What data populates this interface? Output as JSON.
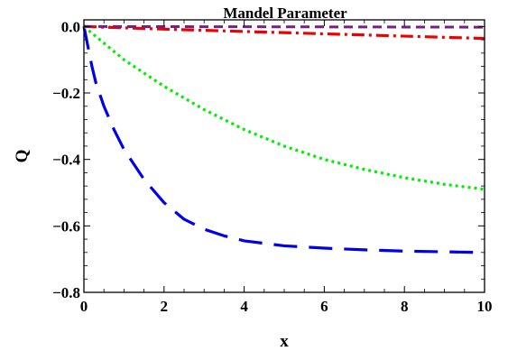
{
  "chart_data": {
    "type": "line",
    "title": "Mandel Parameter",
    "xlabel": "x",
    "ylabel": "Q",
    "xlim": [
      0,
      10
    ],
    "ylim": [
      -0.8,
      0.02
    ],
    "xticks": [
      "0",
      "2",
      "4",
      "6",
      "8",
      "10"
    ],
    "yticks": [
      "0.0",
      "−0.2",
      "−0.4",
      "−0.6",
      "−0.8"
    ],
    "xtick_values": [
      0,
      2,
      4,
      6,
      8,
      10
    ],
    "ytick_values": [
      0.0,
      -0.2,
      -0.4,
      -0.6,
      -0.8
    ],
    "grid": false,
    "legend": "none",
    "series": [
      {
        "color": "#0000ee",
        "style": "long-dash",
        "x": [
          0,
          0.1,
          0.2,
          0.3,
          0.5,
          0.75,
          1,
          1.5,
          2,
          2.5,
          3,
          3.5,
          4,
          5,
          6,
          7,
          8,
          9,
          10
        ],
        "y": [
          0,
          -0.06,
          -0.12,
          -0.17,
          -0.24,
          -0.31,
          -0.37,
          -0.46,
          -0.53,
          -0.58,
          -0.61,
          -0.63,
          -0.645,
          -0.66,
          -0.667,
          -0.672,
          -0.676,
          -0.678,
          -0.68
        ]
      },
      {
        "color": "#00ee00",
        "style": "dotted",
        "x": [
          0,
          0.5,
          1,
          1.5,
          2,
          3,
          4,
          5,
          6,
          7,
          8,
          9,
          10
        ],
        "y": [
          0,
          -0.05,
          -0.1,
          -0.14,
          -0.18,
          -0.25,
          -0.31,
          -0.36,
          -0.4,
          -0.43,
          -0.455,
          -0.475,
          -0.49
        ]
      },
      {
        "color": "#ee0000",
        "style": "dash-dot",
        "x": [
          0,
          2,
          4,
          6,
          8,
          10
        ],
        "y": [
          0,
          -0.008,
          -0.015,
          -0.022,
          -0.029,
          -0.036
        ]
      },
      {
        "color": "#7a1f7a",
        "style": "dashed",
        "x": [
          0,
          10
        ],
        "y": [
          0,
          -0.002
        ]
      }
    ]
  }
}
